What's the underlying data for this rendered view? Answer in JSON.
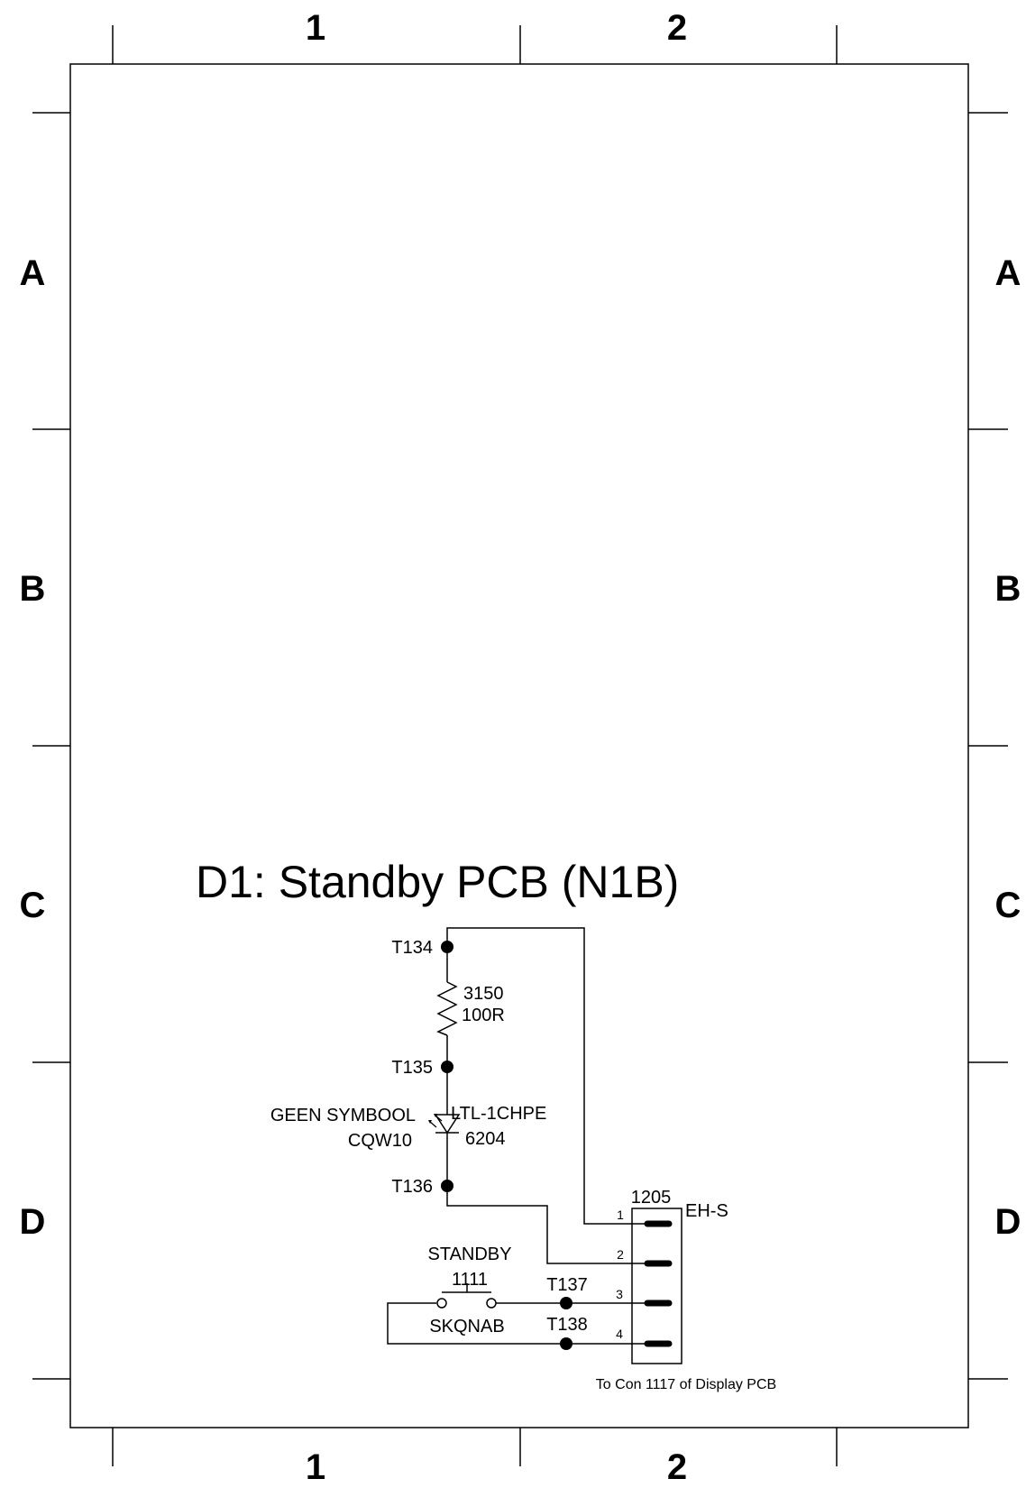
{
  "frame": {
    "columns": [
      "1",
      "2"
    ],
    "rows": [
      "A",
      "B",
      "C",
      "D"
    ]
  },
  "title": "D1: Standby PCB (N1B)",
  "test_points": {
    "t134": "T134",
    "t135": "T135",
    "t136": "T136",
    "t137": "T137",
    "t138": "T138"
  },
  "resistor": {
    "ref": "3150",
    "value": "100R"
  },
  "led": {
    "ref": "6204",
    "part": "LTL-1CHPE",
    "note": "GEEN SYMBOOL",
    "alt": "CQW10"
  },
  "switch": {
    "name": "STANDBY",
    "ref": "1111",
    "part": "SKQNAB"
  },
  "connector": {
    "ref": "1205",
    "type": "EH-S",
    "pins": [
      "1",
      "2",
      "3",
      "4"
    ],
    "note": "To Con 1117 of Display PCB"
  }
}
